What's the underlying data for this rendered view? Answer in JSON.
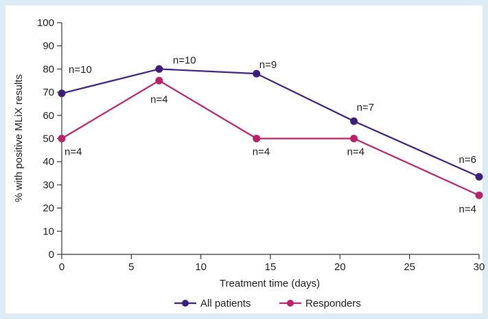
{
  "chart_data": {
    "type": "line",
    "title": "",
    "xlabel": "Treatment time (days)",
    "ylabel": "% with positive MLiX results",
    "xlim": [
      0,
      30
    ],
    "ylim": [
      0,
      100
    ],
    "x_ticks": [
      "0",
      "5",
      "10",
      "15",
      "20",
      "25",
      "30"
    ],
    "y_ticks": [
      "0",
      "10",
      "20",
      "30",
      "40",
      "50",
      "60",
      "70",
      "80",
      "90",
      "100"
    ],
    "grid": false,
    "legend_position": "bottom-center",
    "series": [
      {
        "name": "All patients",
        "color": "#3b1f7a",
        "x": [
          0,
          7,
          14,
          21,
          30
        ],
        "y": [
          69.5,
          80,
          78,
          57.5,
          33.5
        ],
        "labels": [
          "n=10",
          "n=10",
          "n=9",
          "n=7",
          "n=6"
        ]
      },
      {
        "name": "Responders",
        "color": "#b8226b",
        "x": [
          0,
          7,
          14,
          21,
          30
        ],
        "y": [
          50,
          75,
          50,
          50,
          25.5
        ],
        "labels": [
          "n=4",
          "n=4",
          "n=4",
          "n=4",
          "n=4"
        ]
      }
    ]
  }
}
